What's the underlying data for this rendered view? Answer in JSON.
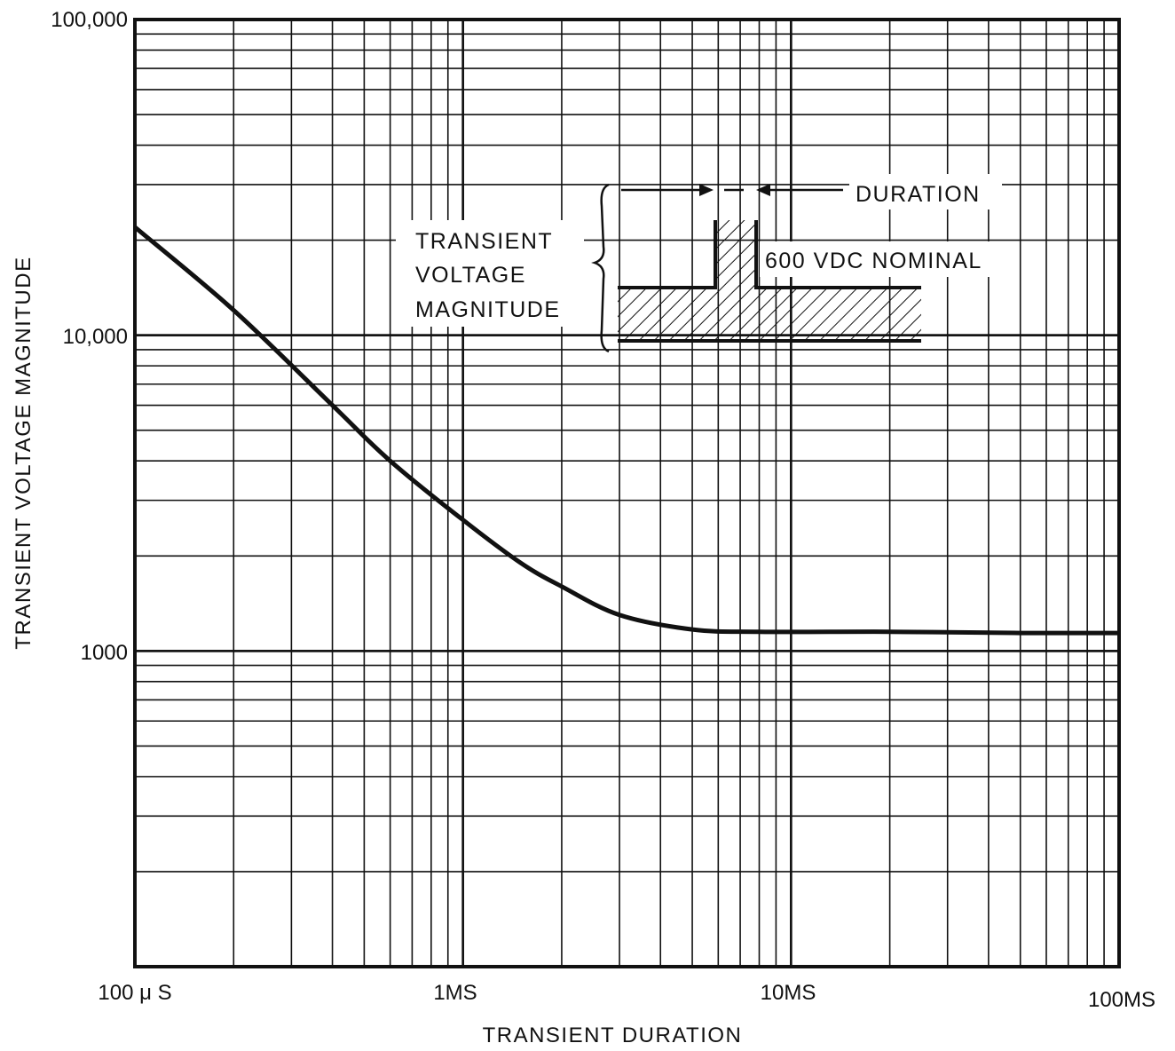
{
  "chart_data": {
    "type": "line",
    "xlabel": "TRANSIENT DURATION",
    "ylabel": "TRANSIENT VOLTAGE MAGNITUDE",
    "x_scale": "log",
    "y_scale": "log",
    "xlim_ms": [
      0.1,
      100
    ],
    "ylim": [
      100,
      100000
    ],
    "grid": true,
    "x_tick_labels": [
      "100 μ S",
      "1MS",
      "10MS",
      "100MS"
    ],
    "y_tick_labels": [
      "100,000",
      "10,000",
      "1000"
    ],
    "series": [
      {
        "x_ms": [
          0.1,
          0.2,
          0.4,
          0.6,
          1.0,
          1.5,
          2.0,
          3.0,
          5.0,
          8.0,
          20.0,
          50.0,
          100.0
        ],
        "y": [
          22000,
          12000,
          6000,
          4000,
          2600,
          1900,
          1600,
          1300,
          1170,
          1150,
          1150,
          1140,
          1140
        ]
      }
    ],
    "annotations": {
      "inset_magnitude_label": [
        "TRANSIENT",
        "VOLTAGE",
        "MAGNITUDE"
      ],
      "inset_duration_label": "DURATION",
      "inset_nominal_label": "600 VDC NOMINAL"
    }
  }
}
